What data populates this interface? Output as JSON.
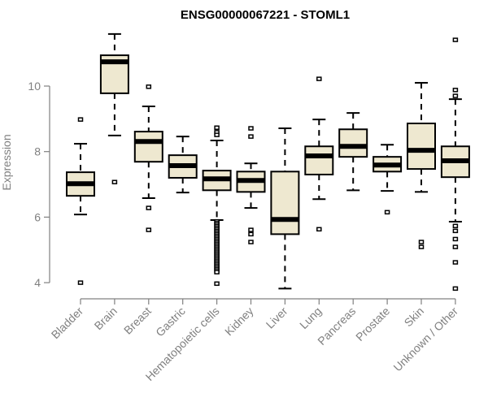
{
  "chart_data": {
    "type": "boxplot",
    "title": "ENSG00000067221 - STOML1",
    "xlabel": "",
    "ylabel": "Expression",
    "ylim": [
      3.8,
      11.6
    ],
    "yticks": [
      4,
      6,
      8,
      10
    ],
    "grid": false,
    "legend": "none",
    "colors": {
      "box_fill": "#EEE8D0",
      "box_stroke": "#000000",
      "axis": "#808080",
      "tick_text": "#808080"
    },
    "categories": [
      "Bladder",
      "Brain",
      "Breast",
      "Gastric",
      "Hematopoietic cells",
      "Kidney",
      "Liver",
      "Lung",
      "Pancreas",
      "Prostate",
      "Skin",
      "Unknown / Other"
    ],
    "boxes": [
      {
        "name": "Bladder",
        "whisker_low": 6.08,
        "q1": 6.65,
        "median": 7.02,
        "q3": 7.37,
        "whisker_high": 8.24,
        "outliers": [
          8.98,
          4.0
        ]
      },
      {
        "name": "Brain",
        "whisker_low": 8.49,
        "q1": 9.78,
        "median": 10.74,
        "q3": 10.94,
        "whisker_high": 11.59,
        "outliers": [
          7.07
        ]
      },
      {
        "name": "Breast",
        "whisker_low": 6.58,
        "q1": 7.69,
        "median": 8.31,
        "q3": 8.61,
        "whisker_high": 9.38,
        "outliers": [
          9.98,
          6.28,
          5.61
        ]
      },
      {
        "name": "Gastric",
        "whisker_low": 6.75,
        "q1": 7.2,
        "median": 7.57,
        "q3": 7.89,
        "whisker_high": 8.46,
        "outliers": []
      },
      {
        "name": "Hematopoietic cells",
        "whisker_low": 5.91,
        "q1": 6.82,
        "median": 7.17,
        "q3": 7.42,
        "whisker_high": 8.34,
        "outliers": [
          8.73,
          8.59,
          8.51,
          5.87,
          5.82,
          5.77,
          5.72,
          5.67,
          5.62,
          5.57,
          5.52,
          5.47,
          5.42,
          5.37,
          5.32,
          5.27,
          5.22,
          5.17,
          5.12,
          5.07,
          5.02,
          4.97,
          4.92,
          4.87,
          4.82,
          4.77,
          4.72,
          4.67,
          4.62,
          4.57,
          4.52,
          4.47,
          4.42,
          4.37,
          4.32,
          3.97
        ]
      },
      {
        "name": "Kidney",
        "whisker_low": 6.28,
        "q1": 6.77,
        "median": 7.12,
        "q3": 7.39,
        "whisker_high": 7.64,
        "outliers": [
          8.71,
          8.46,
          5.61,
          5.48,
          5.24
        ]
      },
      {
        "name": "Liver",
        "whisker_low": 3.82,
        "q1": 5.48,
        "median": 5.93,
        "q3": 7.39,
        "whisker_high": 8.71,
        "outliers": []
      },
      {
        "name": "Lung",
        "whisker_low": 6.55,
        "q1": 7.3,
        "median": 7.87,
        "q3": 8.16,
        "whisker_high": 8.98,
        "outliers": [
          10.22,
          5.63
        ]
      },
      {
        "name": "Pancreas",
        "whisker_low": 6.82,
        "q1": 7.84,
        "median": 8.16,
        "q3": 8.68,
        "whisker_high": 9.18,
        "outliers": []
      },
      {
        "name": "Prostate",
        "whisker_low": 6.8,
        "q1": 7.39,
        "median": 7.59,
        "q3": 7.84,
        "whisker_high": 8.21,
        "outliers": [
          6.15
        ]
      },
      {
        "name": "Skin",
        "whisker_low": 6.77,
        "q1": 7.47,
        "median": 8.04,
        "q3": 8.86,
        "whisker_high": 10.1,
        "outliers": [
          5.24,
          5.09
        ]
      },
      {
        "name": "Unknown / Other",
        "whisker_low": 5.86,
        "q1": 7.22,
        "median": 7.72,
        "q3": 8.16,
        "whisker_high": 9.6,
        "outliers": [
          11.41,
          9.88,
          9.7,
          5.73,
          5.58,
          5.33,
          5.09,
          4.62,
          3.82
        ]
      }
    ]
  }
}
